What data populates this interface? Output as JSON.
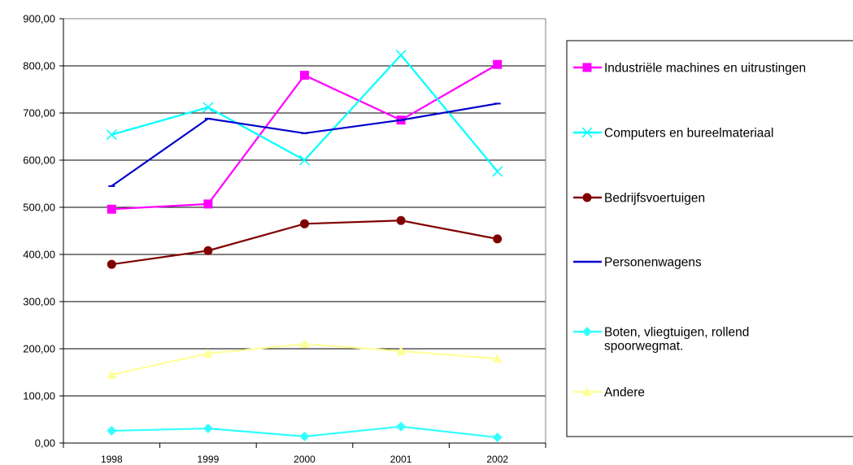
{
  "chart_data": {
    "type": "line",
    "title": "",
    "xlabel": "",
    "ylabel": "",
    "categories": [
      "1998",
      "1999",
      "2000",
      "2001",
      "2002"
    ],
    "ylim": [
      0,
      900
    ],
    "yticks": [
      "0,00",
      "100,00",
      "200,00",
      "300,00",
      "400,00",
      "500,00",
      "600,00",
      "700,00",
      "800,00",
      "900,00"
    ],
    "grid": "horizontal",
    "legend_position": "right",
    "series": [
      {
        "name": "Industriële machines en uitrustingen",
        "color": "#ff00ff",
        "marker": "square",
        "values": [
          496,
          507,
          780,
          685,
          803
        ]
      },
      {
        "name": "Computers en bureelmateriaal",
        "color": "#00ffff",
        "marker": "x",
        "values": [
          654,
          712,
          600,
          823,
          576
        ]
      },
      {
        "name": "Bedrijfsvoertuigen",
        "color": "#800000",
        "marker": "circle",
        "values": [
          379,
          408,
          465,
          472,
          433
        ]
      },
      {
        "name": "Personenwagens",
        "color": "#0000cc",
        "marker": "dash",
        "values": [
          545,
          688,
          657,
          685,
          720
        ]
      },
      {
        "name": "Boten, vliegtuigen, rollend spoorwegmat.",
        "color": "#33ffff",
        "marker": "diamond",
        "values": [
          26,
          31,
          14,
          35,
          12
        ]
      },
      {
        "name": "Andere",
        "color": "#ffff99",
        "marker": "triangle",
        "values": [
          145,
          190,
          210,
          195,
          179
        ]
      }
    ]
  }
}
